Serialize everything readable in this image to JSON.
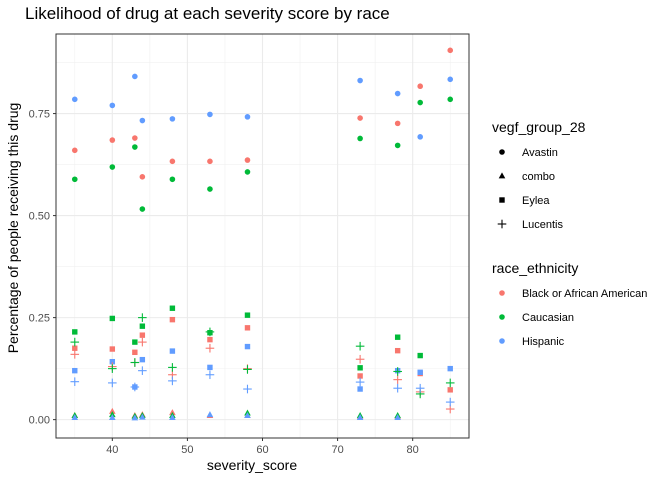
{
  "chart_data": {
    "type": "scatter",
    "title": "Likelihood of drug at each severity score by race",
    "xlabel": "severity_score",
    "ylabel": "Percentage of people receiving this drug",
    "xlim": [
      32.5,
      87.5
    ],
    "ylim": [
      -0.045,
      0.945
    ],
    "x_ticks": [
      40,
      50,
      60,
      70,
      80
    ],
    "y_ticks": [
      0.0,
      0.25,
      0.5,
      0.75
    ],
    "y_tick_labels": [
      "0.00",
      "0.25",
      "0.50",
      "0.75"
    ],
    "grid": true,
    "legend_position": "right",
    "shape_legend": {
      "title": "vegf_group_28",
      "items": [
        {
          "label": "Avastin",
          "shape": "circle"
        },
        {
          "label": "combo",
          "shape": "triangle"
        },
        {
          "label": "Eylea",
          "shape": "square"
        },
        {
          "label": "Lucentis",
          "shape": "plus"
        }
      ]
    },
    "color_legend": {
      "title": "race_ethnicity",
      "items": [
        {
          "label": "Black or African American",
          "color": "#F8766D"
        },
        {
          "label": "Caucasian",
          "color": "#00BA38"
        },
        {
          "label": "Hispanic",
          "color": "#619CFF"
        }
      ]
    },
    "series": [
      {
        "race": "Black or African American",
        "drug": "Avastin",
        "points": [
          [
            35,
            0.66
          ],
          [
            40,
            0.685
          ],
          [
            43,
            0.69
          ],
          [
            44,
            0.595
          ],
          [
            48,
            0.633
          ],
          [
            53,
            0.633
          ],
          [
            58,
            0.636
          ],
          [
            73,
            0.739
          ],
          [
            78,
            0.726
          ],
          [
            81,
            0.817
          ],
          [
            85,
            0.905
          ]
        ]
      },
      {
        "race": "Caucasian",
        "drug": "Avastin",
        "points": [
          [
            35,
            0.589
          ],
          [
            40,
            0.619
          ],
          [
            43,
            0.668
          ],
          [
            44,
            0.516
          ],
          [
            48,
            0.589
          ],
          [
            53,
            0.565
          ],
          [
            58,
            0.607
          ],
          [
            73,
            0.689
          ],
          [
            78,
            0.672
          ],
          [
            81,
            0.777
          ],
          [
            85,
            0.785
          ]
        ]
      },
      {
        "race": "Hispanic",
        "drug": "Avastin",
        "points": [
          [
            35,
            0.785
          ],
          [
            40,
            0.77
          ],
          [
            43,
            0.841
          ],
          [
            44,
            0.733
          ],
          [
            48,
            0.737
          ],
          [
            53,
            0.748
          ],
          [
            58,
            0.742
          ],
          [
            73,
            0.831
          ],
          [
            78,
            0.799
          ],
          [
            81,
            0.693
          ],
          [
            85,
            0.834
          ]
        ]
      },
      {
        "race": "Black or African American",
        "drug": "combo",
        "points": [
          [
            35,
            0.01
          ],
          [
            40,
            0.02
          ],
          [
            43,
            0.01
          ],
          [
            44,
            0.012
          ],
          [
            48,
            0.017
          ],
          [
            53,
            0.01
          ],
          [
            58,
            0.01
          ],
          [
            73,
            0.008
          ],
          [
            78,
            0.008
          ]
        ]
      },
      {
        "race": "Caucasian",
        "drug": "combo",
        "points": [
          [
            35,
            0.01
          ],
          [
            40,
            0.012
          ],
          [
            43,
            0.008
          ],
          [
            44,
            0.01
          ],
          [
            48,
            0.01
          ],
          [
            58,
            0.016
          ],
          [
            73,
            0.01
          ],
          [
            78,
            0.01
          ]
        ]
      },
      {
        "race": "Hispanic",
        "drug": "combo",
        "points": [
          [
            35,
            0.005
          ],
          [
            40,
            0.005
          ],
          [
            43,
            0.004
          ],
          [
            44,
            0.006
          ],
          [
            48,
            0.005
          ],
          [
            53,
            0.012
          ],
          [
            58,
            0.01
          ],
          [
            73,
            0.005
          ],
          [
            78,
            0.005
          ]
        ]
      },
      {
        "race": "Black or African American",
        "drug": "Eylea",
        "points": [
          [
            35,
            0.175
          ],
          [
            40,
            0.173
          ],
          [
            43,
            0.165
          ],
          [
            44,
            0.207
          ],
          [
            48,
            0.245
          ],
          [
            53,
            0.196
          ],
          [
            58,
            0.225
          ],
          [
            73,
            0.107
          ],
          [
            78,
            0.169
          ],
          [
            81,
            0.113
          ],
          [
            85,
            0.073
          ]
        ]
      },
      {
        "race": "Caucasian",
        "drug": "Eylea",
        "points": [
          [
            35,
            0.215
          ],
          [
            40,
            0.248
          ],
          [
            43,
            0.19
          ],
          [
            44,
            0.229
          ],
          [
            48,
            0.273
          ],
          [
            53,
            0.213
          ],
          [
            58,
            0.256
          ],
          [
            73,
            0.127
          ],
          [
            78,
            0.202
          ],
          [
            81,
            0.157
          ]
        ]
      },
      {
        "race": "Hispanic",
        "drug": "Eylea",
        "points": [
          [
            35,
            0.12
          ],
          [
            40,
            0.142
          ],
          [
            43,
            0.08
          ],
          [
            44,
            0.147
          ],
          [
            48,
            0.168
          ],
          [
            53,
            0.128
          ],
          [
            58,
            0.179
          ],
          [
            73,
            0.075
          ],
          [
            78,
            0.12
          ],
          [
            81,
            0.116
          ],
          [
            85,
            0.125
          ]
        ]
      },
      {
        "race": "Black or African American",
        "drug": "Lucentis",
        "points": [
          [
            35,
            0.16
          ],
          [
            40,
            0.13
          ],
          [
            43,
            0.14
          ],
          [
            44,
            0.19
          ],
          [
            48,
            0.11
          ],
          [
            53,
            0.175
          ],
          [
            58,
            0.125
          ],
          [
            73,
            0.148
          ],
          [
            78,
            0.098
          ],
          [
            81,
            0.068
          ],
          [
            85,
            0.026
          ]
        ]
      },
      {
        "race": "Caucasian",
        "drug": "Lucentis",
        "points": [
          [
            35,
            0.19
          ],
          [
            40,
            0.125
          ],
          [
            43,
            0.14
          ],
          [
            44,
            0.25
          ],
          [
            48,
            0.128
          ],
          [
            53,
            0.215
          ],
          [
            58,
            0.123
          ],
          [
            73,
            0.18
          ],
          [
            78,
            0.118
          ],
          [
            81,
            0.063
          ],
          [
            85,
            0.09
          ]
        ]
      },
      {
        "race": "Hispanic",
        "drug": "Lucentis",
        "points": [
          [
            35,
            0.093
          ],
          [
            40,
            0.09
          ],
          [
            43,
            0.08
          ],
          [
            44,
            0.12
          ],
          [
            48,
            0.095
          ],
          [
            53,
            0.11
          ],
          [
            58,
            0.075
          ],
          [
            73,
            0.092
          ],
          [
            78,
            0.077
          ],
          [
            81,
            0.077
          ],
          [
            85,
            0.043
          ]
        ]
      }
    ]
  }
}
